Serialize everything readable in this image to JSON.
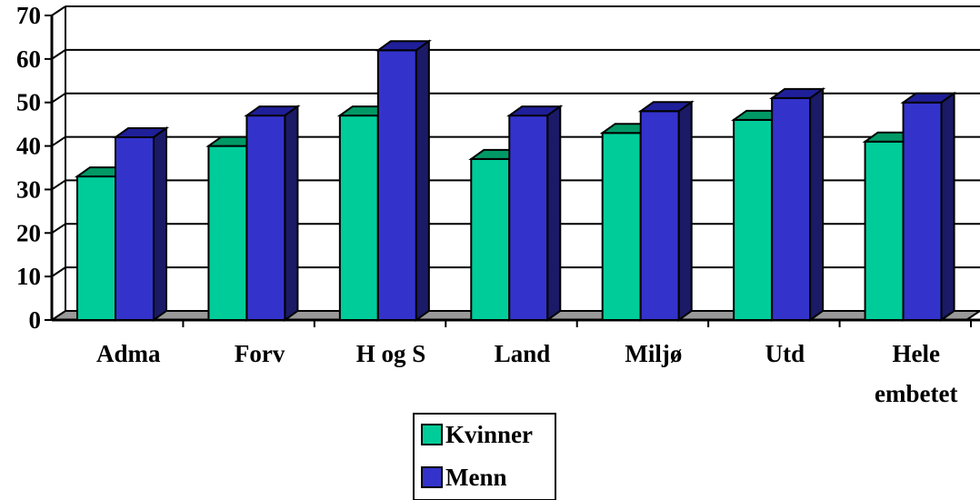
{
  "chart_data": {
    "type": "bar",
    "categories": [
      [
        "Adma"
      ],
      [
        "Forv"
      ],
      [
        "H og S"
      ],
      [
        "Land"
      ],
      [
        "Miljø"
      ],
      [
        "Utd"
      ],
      [
        "Hele",
        "embetet"
      ]
    ],
    "series": [
      {
        "name": "Kvinner",
        "values": [
          33,
          40,
          47,
          37,
          43,
          46,
          41
        ],
        "color": "#00CC99",
        "top_color": "#009966",
        "side_color": "#008060"
      },
      {
        "name": "Menn",
        "values": [
          42,
          47,
          62,
          47,
          48,
          51,
          50
        ],
        "color": "#3333CC",
        "top_color": "#1F1F99",
        "side_color": "#1A1A66"
      }
    ],
    "y_ticks": [
      "0",
      "10",
      "20",
      "30",
      "40",
      "50",
      "60",
      "70"
    ],
    "ylim": [
      0,
      70
    ],
    "grid": true,
    "legend_position": "bottom-center",
    "title": "",
    "xlabel": "",
    "ylabel": ""
  }
}
